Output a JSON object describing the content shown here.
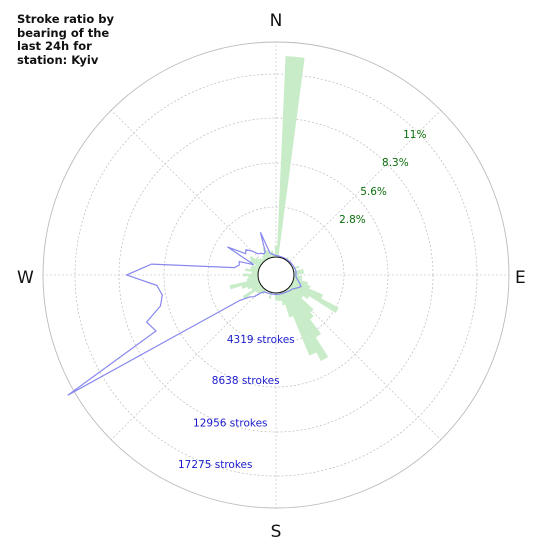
{
  "title_lines": [
    "Stroke ratio by",
    "bearing of the",
    "last 24h for",
    "station: Kyiv"
  ],
  "colors": {
    "ratio_fill": "#c8ecc8",
    "count_line": "#8888ee",
    "grid": "#bbbbbb",
    "pct_label": "#0a6e0a",
    "count_label": "#1a1acc"
  },
  "chart_data": {
    "type": "polar",
    "title": "Stroke ratio by bearing of the last 24h for station: Kyiv",
    "directions": [
      "N",
      "E",
      "S",
      "W"
    ],
    "ratio_ticks": [
      {
        "value": 2.8,
        "label": "2.8%"
      },
      {
        "value": 5.6,
        "label": "5.6%"
      },
      {
        "value": 8.3,
        "label": "8.3%"
      },
      {
        "value": 11.1,
        "label": "11%"
      }
    ],
    "count_ticks": [
      {
        "value": 4319,
        "label": "4319 strokes"
      },
      {
        "value": 8638,
        "label": "8638 strokes"
      },
      {
        "value": 12956,
        "label": "12956 strokes"
      },
      {
        "value": 17275,
        "label": "17275 strokes"
      }
    ],
    "grid": true,
    "series": [
      {
        "type": "bar",
        "unit": "%",
        "bin_width_deg": 5,
        "bearings": [
          0,
          5,
          35,
          70,
          80,
          85,
          90,
          95,
          100,
          105,
          110,
          115,
          120,
          125,
          130,
          135,
          140,
          145,
          150,
          155,
          160,
          165,
          170,
          175,
          180,
          195,
          215,
          220,
          225,
          230,
          235,
          240,
          245,
          250,
          255,
          260,
          265,
          270,
          275,
          280,
          285,
          290,
          295,
          300,
          305,
          310,
          315,
          320,
          325,
          330,
          335,
          340,
          345,
          350,
          355
        ],
        "values": [
          0.7,
          12.2,
          0.2,
          0.4,
          0.6,
          0.6,
          0.3,
          0.5,
          0.5,
          0.9,
          1.1,
          2.0,
          3.2,
          1.3,
          1.0,
          2.0,
          2.3,
          3.4,
          4.8,
          4.2,
          1.6,
          0.8,
          0.5,
          0.5,
          0.4,
          0.4,
          0.3,
          0.3,
          0.4,
          0.5,
          1.3,
          0.6,
          0.8,
          1.1,
          1.8,
          0.7,
          0.6,
          0.9,
          0.4,
          0.8,
          0.5,
          0.5,
          0.3,
          0.7,
          0.8,
          0.5,
          0.3,
          0.2,
          0.3,
          0.4,
          0.7,
          0.5,
          0.2,
          0.4,
          0.2
        ]
      },
      {
        "type": "line",
        "unit": "strokes",
        "bearings": [
          0,
          5,
          10,
          15,
          20,
          25,
          30,
          35,
          40,
          45,
          50,
          55,
          60,
          65,
          70,
          75,
          80,
          85,
          90,
          95,
          100,
          105,
          110,
          115,
          120,
          125,
          130,
          135,
          140,
          145,
          150,
          155,
          160,
          165,
          170,
          175,
          180,
          185,
          190,
          195,
          200,
          205,
          210,
          215,
          220,
          225,
          230,
          235,
          240,
          245,
          250,
          255,
          260,
          265,
          270,
          275,
          280,
          285,
          290,
          295,
          300,
          305,
          310,
          315,
          320,
          325,
          330,
          335,
          340,
          345,
          350,
          355
        ],
        "values": [
          150,
          120,
          100,
          90,
          80,
          80,
          80,
          80,
          90,
          100,
          110,
          120,
          140,
          160,
          180,
          200,
          220,
          200,
          180,
          200,
          300,
          500,
          700,
          900,
          700,
          500,
          350,
          300,
          250,
          200,
          180,
          160,
          150,
          140,
          140,
          140,
          140,
          140,
          140,
          140,
          150,
          180,
          200,
          250,
          500,
          1200,
          1500,
          2500,
          21000,
          10800,
          11300,
          9600,
          9200,
          9600,
          12400,
          10100,
          2300,
          1900,
          2000,
          600,
          3600,
          1800,
          2000,
          1500,
          900,
          800,
          600,
          700,
          2600,
          400,
          300,
          200
        ]
      }
    ]
  }
}
